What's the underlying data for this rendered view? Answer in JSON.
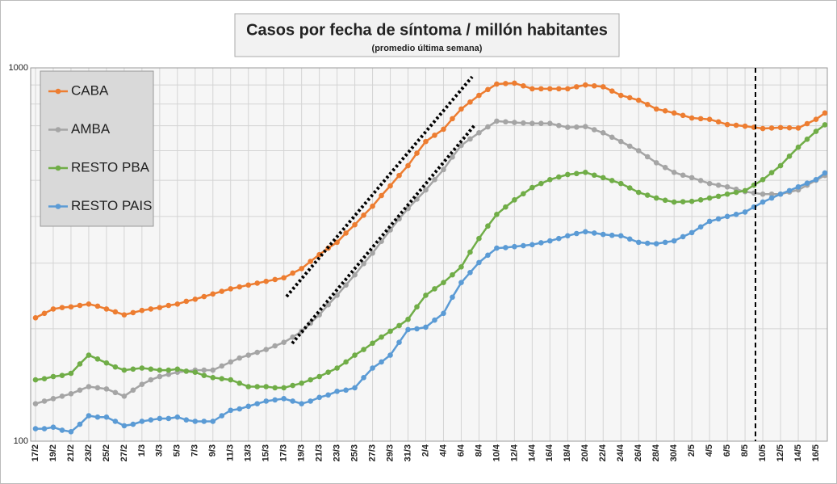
{
  "chart_data": {
    "type": "line",
    "title": "Casos por fecha de síntoma / millón habitantes",
    "subtitle": "(promedio última semana)",
    "log_scale": true,
    "grid": true,
    "legend": "upper left",
    "ylim": [
      100,
      1000
    ],
    "yticks": [
      100,
      1000
    ],
    "yminor": [
      200,
      300,
      400,
      500,
      600,
      700,
      800,
      900
    ],
    "categories": [
      "17/2",
      null,
      "19/2",
      null,
      "21/2",
      null,
      "23/2",
      null,
      "25/2",
      null,
      "27/2",
      null,
      "1/3",
      null,
      "3/3",
      null,
      "5/3",
      null,
      "7/3",
      null,
      "9/3",
      null,
      "11/3",
      null,
      "13/3",
      null,
      "15/3",
      null,
      "17/3",
      null,
      "19/3",
      null,
      "21/3",
      null,
      "23/3",
      null,
      "25/3",
      null,
      "27/3",
      null,
      "29/3",
      null,
      "31/3",
      null,
      "2/4",
      null,
      "4/4",
      null,
      "6/4",
      null,
      "8/4",
      null,
      "10/4",
      null,
      "12/4",
      null,
      "14/4",
      null,
      "16/4",
      null,
      "18/4",
      null,
      "20/4",
      null,
      "22/4",
      null,
      "24/4",
      null,
      "26/4",
      null,
      "28/4",
      null,
      "30/4",
      null,
      "2/5",
      null,
      "4/5",
      null,
      "6/5",
      null,
      "8/5",
      null,
      "10/5",
      null,
      "12/5",
      null,
      "14/5",
      null,
      "16/5",
      null
    ],
    "series": [
      {
        "name": "CABA",
        "color": "#ed7d31",
        "values": [
          214,
          220,
          226,
          228,
          229,
          231,
          233,
          230,
          226,
          222,
          218,
          221,
          224,
          226,
          228,
          231,
          233,
          237,
          240,
          244,
          248,
          252,
          256,
          259,
          262,
          265,
          268,
          271,
          274,
          282,
          290,
          303,
          316,
          329,
          341,
          361,
          380,
          403,
          426,
          455,
          483,
          515,
          547,
          591,
          635,
          660,
          685,
          731,
          776,
          810,
          844,
          875,
          905,
          908,
          910,
          895,
          879,
          879,
          879,
          879,
          879,
          890,
          900,
          895,
          890,
          867,
          844,
          832,
          819,
          798,
          776,
          767,
          757,
          746,
          734,
          731,
          728,
          717,
          705,
          702,
          698,
          693,
          688,
          690,
          692,
          691,
          690,
          709,
          728,
          757
        ]
      },
      {
        "name": "AMBA",
        "color": "#a5a5a5",
        "values": [
          126,
          128,
          130,
          132,
          134,
          137,
          140,
          139,
          138,
          135,
          132,
          137,
          142,
          146,
          149,
          151,
          153,
          154,
          155,
          155,
          155,
          159,
          163,
          167,
          170,
          173,
          176,
          180,
          184,
          190,
          197,
          207,
          218,
          232,
          246,
          262,
          279,
          299,
          319,
          343,
          368,
          394,
          420,
          445,
          471,
          502,
          534,
          577,
          620,
          645,
          670,
          695,
          720,
          717,
          714,
          712,
          710,
          710,
          710,
          701,
          693,
          694,
          696,
          683,
          670,
          652,
          635,
          617,
          600,
          578,
          557,
          541,
          525,
          516,
          508,
          499,
          490,
          485,
          480,
          473,
          466,
          462,
          459,
          459,
          459,
          465,
          471,
          485,
          500,
          515
        ]
      },
      {
        "name": "RESTO PBA",
        "color": "#70ad47",
        "values": [
          146,
          147,
          149,
          150,
          152,
          161,
          170,
          166,
          162,
          158,
          155,
          156,
          157,
          156,
          155,
          155,
          156,
          154,
          153,
          150,
          148,
          147,
          146,
          143,
          140,
          140,
          140,
          139,
          139,
          141,
          143,
          146,
          149,
          153,
          157,
          163,
          170,
          176,
          183,
          190,
          197,
          204,
          212,
          229,
          246,
          256,
          266,
          279,
          293,
          321,
          349,
          377,
          405,
          424,
          443,
          460,
          478,
          490,
          502,
          510,
          518,
          521,
          525,
          516,
          508,
          499,
          490,
          477,
          464,
          456,
          448,
          442,
          437,
          438,
          439,
          443,
          448,
          453,
          459,
          464,
          469,
          485,
          502,
          524,
          547,
          580,
          613,
          644,
          676,
          704
        ]
      },
      {
        "name": "RESTO PAIS",
        "color": "#5b9bd5",
        "values": [
          108,
          108,
          109,
          107,
          106,
          111,
          117,
          116,
          116,
          113,
          110,
          111,
          113,
          114,
          115,
          115,
          116,
          114,
          113,
          113,
          113,
          117,
          121,
          122,
          124,
          126,
          128,
          129,
          130,
          128,
          126,
          128,
          131,
          133,
          136,
          137,
          139,
          148,
          157,
          163,
          170,
          184,
          199,
          200,
          202,
          211,
          220,
          243,
          266,
          283,
          301,
          315,
          329,
          330,
          332,
          334,
          336,
          340,
          344,
          349,
          355,
          360,
          364,
          361,
          358,
          356,
          355,
          348,
          341,
          339,
          338,
          341,
          344,
          353,
          362,
          375,
          388,
          394,
          400,
          405,
          411,
          424,
          437,
          448,
          459,
          469,
          480,
          491,
          502,
          523
        ]
      }
    ]
  }
}
